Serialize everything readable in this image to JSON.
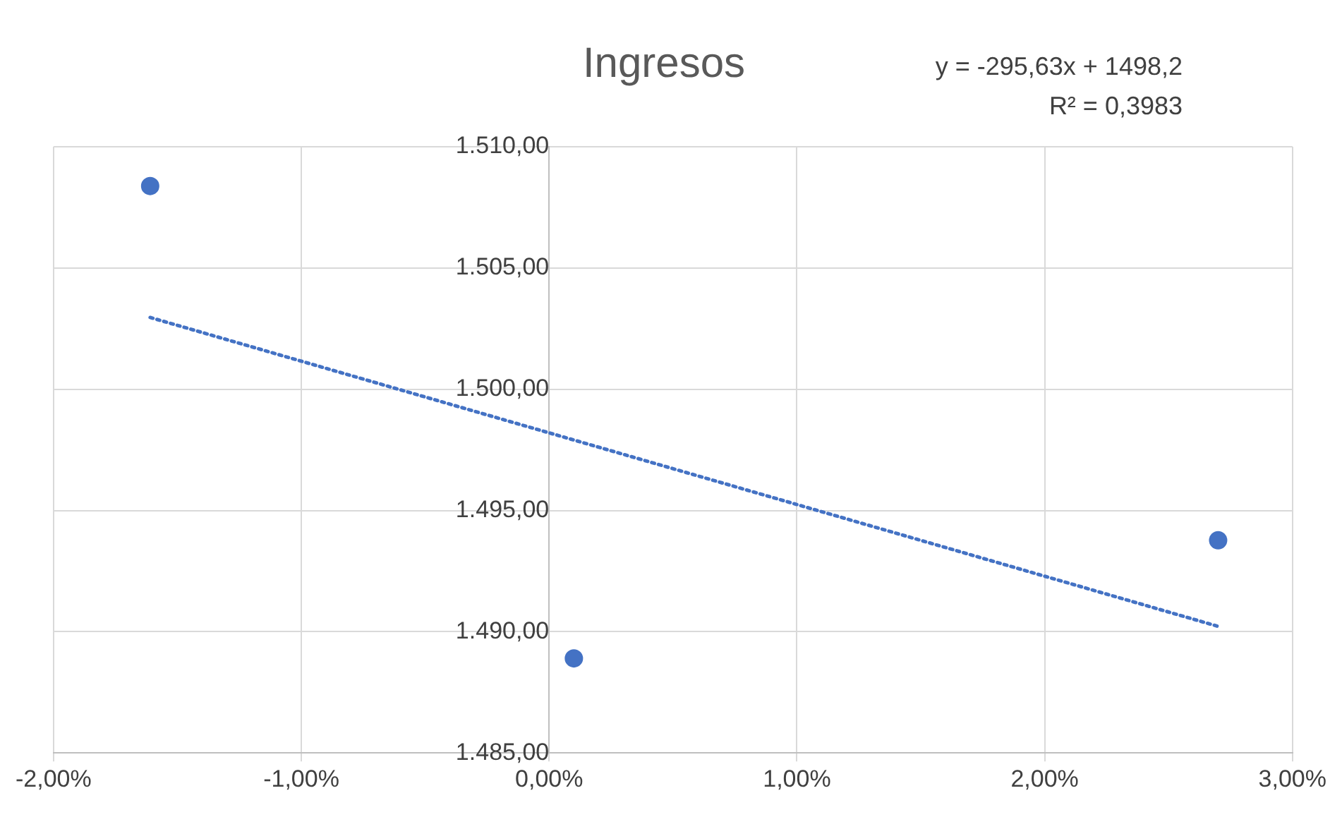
{
  "chart_data": {
    "type": "scatter",
    "title": "Ingresos",
    "annotations": [
      "y = -295,63x + 1498,2",
      "R² = 0,3983"
    ],
    "series": [
      {
        "color": "#4472c4",
        "x": [
          -1.61,
          0.1,
          2.7
        ],
        "values": [
          1508.38,
          1488.9,
          1493.77
        ],
        "marker": "circle"
      },
      {
        "type": "line",
        "color": "#4472c4",
        "x": [
          -1.61,
          2.7
        ],
        "values": [
          1502.96,
          1490.22
        ],
        "marker": "none",
        "line_style": "dotted"
      }
    ],
    "xlim": [
      -2,
      3
    ],
    "xticks": [
      {
        "value": -2,
        "label": "-2,00%"
      },
      {
        "value": -1,
        "label": "-1,00%"
      },
      {
        "value": 0,
        "label": "0,00%"
      },
      {
        "value": 1,
        "label": "1,00%"
      },
      {
        "value": 2,
        "label": "2,00%"
      },
      {
        "value": 3,
        "label": "3,00%"
      }
    ],
    "ylim": [
      1485,
      1510
    ],
    "yticks": [
      {
        "value": 1485,
        "label": "1.485,00"
      },
      {
        "value": 1490,
        "label": "1.490,00"
      },
      {
        "value": 1495,
        "label": "1.495,00"
      },
      {
        "value": 1500,
        "label": "1.500,00"
      },
      {
        "value": 1505,
        "label": "1.505,00"
      },
      {
        "value": 1510,
        "label": "1.510,00"
      }
    ],
    "grid": true,
    "legend": false
  }
}
